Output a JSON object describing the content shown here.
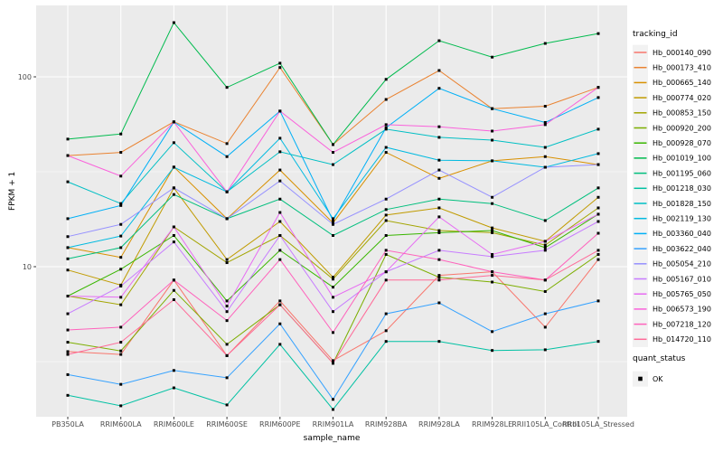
{
  "figure": {
    "background": "#FFFFFF",
    "panel_background": "#EBEBEB",
    "gridline_color": "#FFFFFF",
    "tick_color": "#333333",
    "tick_label_color": "#4D4D4D",
    "legend_key_background": "#F2F2F2",
    "point_color": "#000000"
  },
  "axes": {
    "x_title": "sample_name",
    "y_title": "FPKM + 1"
  },
  "legend": {
    "tracking_title": "tracking_id",
    "quant_title": "quant_status",
    "quant_items": [
      {
        "label": "OK",
        "marker": "black-square",
        "color": "#000000"
      }
    ]
  },
  "chart_data": {
    "type": "line",
    "title": "",
    "xlabel": "sample_name",
    "ylabel": "FPKM + 1",
    "y_scale": "log10",
    "grid": true,
    "legend_position": "right",
    "point_marker": "black-square",
    "y_tick_values": [
      100,
      10
    ],
    "y_tick_labels": [
      "100",
      "10"
    ],
    "y_minor_values": [
      31.62,
      3.162
    ],
    "ylim": [
      1.62,
      240
    ],
    "categories": [
      "PB350LA",
      "RRIM600LA",
      "RRIM600LE",
      "RRIM600SE",
      "RRIM600PE",
      "RRIM901LA",
      "RRIM928BA",
      "RRIM928LA",
      "RRIM928LE",
      "RRII105LA_Control",
      "RRII105LA_Stressed"
    ],
    "series": [
      {
        "name": "Hb_000140_090",
        "color": "#F8766D",
        "values": [
          3.57,
          3.45,
          8.5,
          3.4,
          6.6,
          3.2,
          4.6,
          9.0,
          9.4,
          4.8,
          10.9
        ]
      },
      {
        "name": "Hb_000173_410",
        "color": "#EA8331",
        "values": [
          38.5,
          40,
          58,
          44.5,
          112,
          44,
          76,
          108,
          68,
          70,
          88
        ]
      },
      {
        "name": "Hb_000665_140",
        "color": "#D89000",
        "values": [
          12.6,
          11.2,
          33.5,
          17.9,
          32.3,
          17,
          40,
          29.2,
          36.1,
          38,
          34.5
        ]
      },
      {
        "name": "Hb_000774_020",
        "color": "#C09B00",
        "values": [
          9.6,
          8.0,
          26,
          10.9,
          17.3,
          8.8,
          18.7,
          20.4,
          16.0,
          13.6,
          23.2
        ]
      },
      {
        "name": "Hb_000853_150",
        "color": "#A3A500",
        "values": [
          7.0,
          6.3,
          16.2,
          10.5,
          14.6,
          8.6,
          17.5,
          15.5,
          15.1,
          13.0,
          20.4
        ]
      },
      {
        "name": "Hb_000920_200",
        "color": "#7CAE00",
        "values": [
          4.0,
          3.6,
          7.5,
          3.9,
          6.3,
          3.1,
          11.6,
          8.8,
          8.3,
          7.4,
          11.6
        ]
      },
      {
        "name": "Hb_000928_070",
        "color": "#39B600",
        "values": [
          7.0,
          9.7,
          14.6,
          6.6,
          12.2,
          7.8,
          14.6,
          15.1,
          15.5,
          12.6,
          18.9
        ]
      },
      {
        "name": "Hb_001019_100",
        "color": "#00BB4E",
        "values": [
          47,
          50,
          193,
          88,
          118,
          44,
          97,
          155,
          127,
          150,
          169
        ]
      },
      {
        "name": "Hb_001195_060",
        "color": "#00BF7D",
        "values": [
          11.0,
          12.6,
          24,
          17.9,
          22.7,
          14.6,
          20,
          22.7,
          21.5,
          17.5,
          26
        ]
      },
      {
        "name": "Hb_001218_030",
        "color": "#00C1A3",
        "values": [
          2.1,
          1.85,
          2.3,
          1.87,
          3.9,
          1.77,
          4.04,
          4.04,
          3.62,
          3.65,
          4.04
        ]
      },
      {
        "name": "Hb_001828_150",
        "color": "#00BFC4",
        "values": [
          28,
          21.5,
          45,
          24.8,
          40.3,
          34.5,
          53,
          48,
          46.4,
          42.5,
          53
        ]
      },
      {
        "name": "Hb_002119_130",
        "color": "#00BAE0",
        "values": [
          12.6,
          14.5,
          33.4,
          24.8,
          47.5,
          17.9,
          42.5,
          36.4,
          36.1,
          33.4,
          39.4
        ]
      },
      {
        "name": "Hb_003360_040",
        "color": "#00B0F6",
        "values": [
          17.9,
          21,
          57.8,
          38,
          66,
          17.5,
          54,
          87,
          68,
          57.5,
          77.8
        ]
      },
      {
        "name": "Hb_003622_040",
        "color": "#35A2FF",
        "values": [
          2.7,
          2.4,
          2.84,
          2.6,
          5.0,
          2.0,
          5.65,
          6.45,
          4.55,
          5.65,
          6.6
        ]
      },
      {
        "name": "Hb_005054_210",
        "color": "#9590FF",
        "values": [
          14.4,
          16.7,
          26,
          17.9,
          28.3,
          16.7,
          22.7,
          32.3,
          23.2,
          33.4,
          34.5
        ]
      },
      {
        "name": "Hb_005167_010",
        "color": "#C77CFF",
        "values": [
          5.65,
          7.9,
          13.5,
          5.8,
          14.6,
          5.8,
          9.4,
          12.2,
          11.3,
          12.2,
          17.3
        ]
      },
      {
        "name": "Hb_005765_050",
        "color": "#E76BF3",
        "values": [
          7.0,
          6.9,
          16.2,
          6.2,
          19.3,
          6.9,
          9.4,
          18.3,
          11.6,
          13.6,
          18.9
        ]
      },
      {
        "name": "Hb_006573_190",
        "color": "#FA62DB",
        "values": [
          38.5,
          30,
          57.8,
          24.8,
          66,
          40,
          56,
          54.6,
          51.8,
          56,
          88
        ]
      },
      {
        "name": "Hb_007218_120",
        "color": "#FF62BC",
        "values": [
          4.64,
          4.8,
          8.5,
          5.2,
          10.9,
          4.5,
          12.2,
          10.9,
          9.4,
          8.5,
          15.0
        ]
      },
      {
        "name": "Hb_014720_110",
        "color": "#FF6A98",
        "values": [
          3.45,
          4.0,
          6.7,
          3.4,
          6.3,
          3.1,
          8.5,
          8.5,
          9.0,
          8.5,
          12.2
        ]
      }
    ]
  }
}
